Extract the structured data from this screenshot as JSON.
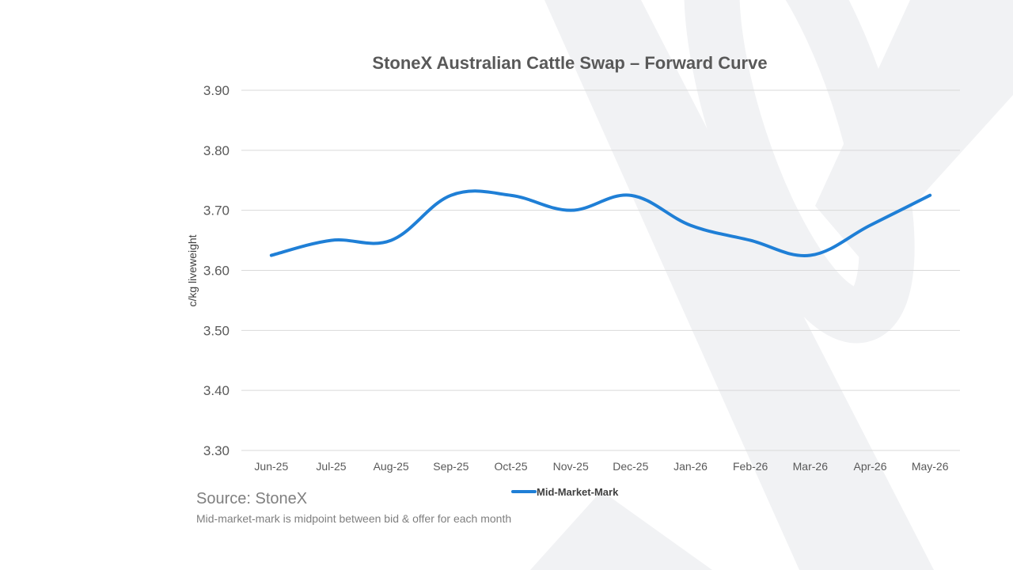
{
  "colors": {
    "line": "#1f7fd6",
    "watermark": "#f1f2f4",
    "grid": "#d9d9d9",
    "text": "#595959"
  },
  "watermark_icon": "stonex-x-logo",
  "chart_data": {
    "type": "line",
    "title": "StoneX Australian Cattle Swap – Forward Curve",
    "xlabel": "",
    "ylabel": "c/kg liveweight",
    "categories": [
      "Jun-25",
      "Jul-25",
      "Aug-25",
      "Sep-25",
      "Oct-25",
      "Nov-25",
      "Dec-25",
      "Jan-26",
      "Feb-26",
      "Mar-26",
      "Apr-26",
      "May-26"
    ],
    "series": [
      {
        "name": "Mid-Market-Mark",
        "values": [
          3.625,
          3.65,
          3.65,
          3.725,
          3.725,
          3.7,
          3.725,
          3.675,
          3.65,
          3.625,
          3.675,
          3.725
        ]
      }
    ],
    "ylim": [
      3.3,
      3.9
    ],
    "yticks": [
      "3.30",
      "3.40",
      "3.50",
      "3.60",
      "3.70",
      "3.80",
      "3.90"
    ],
    "grid": true,
    "legend": "bottom-center"
  },
  "footer": {
    "source": "Source: StoneX",
    "note": "Mid-market-mark is midpoint between bid & offer for each month"
  }
}
